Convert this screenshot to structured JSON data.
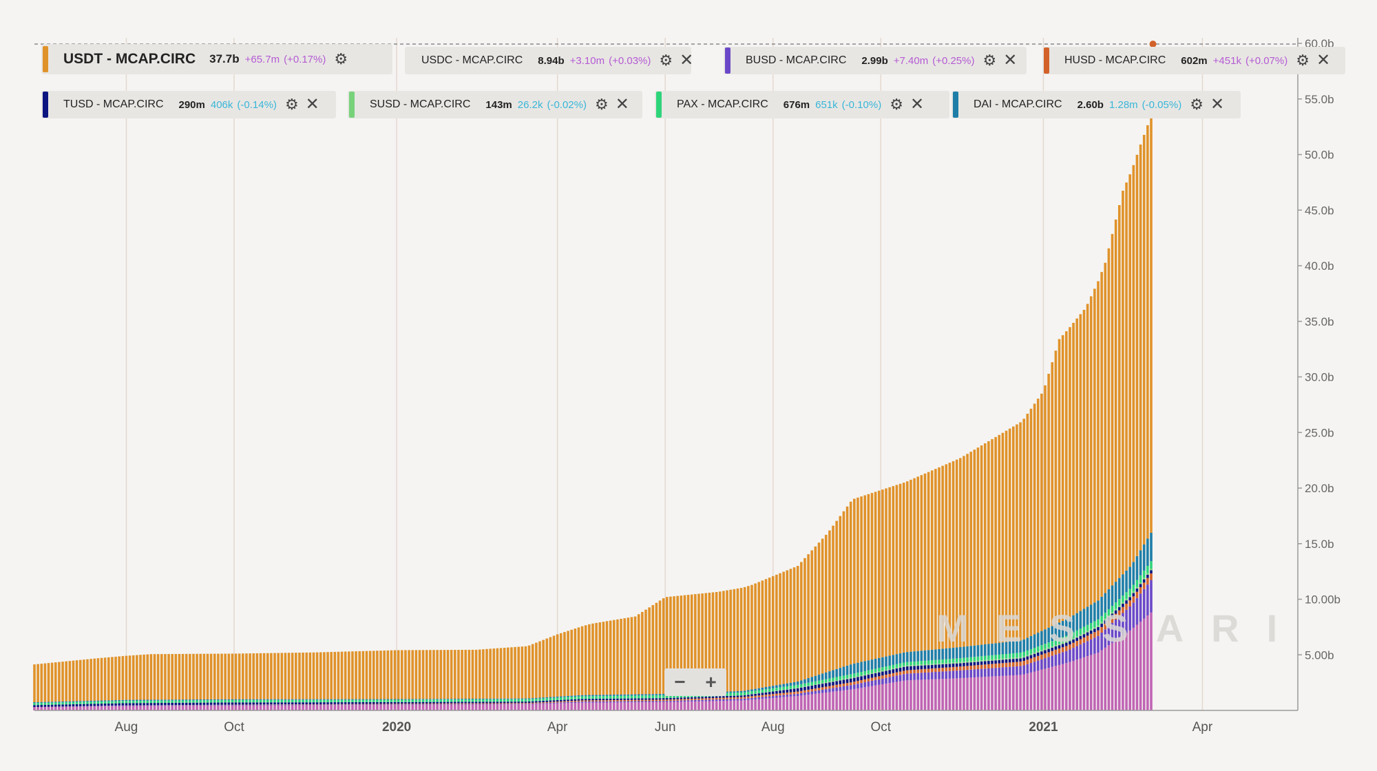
{
  "watermark": "MESSARI",
  "zoom": {
    "minus": "−",
    "plus": "+"
  },
  "legend": [
    {
      "name": "USDT - MCAP.CIRC",
      "value": "37.7b",
      "change": "+65.7m",
      "pct": "(+0.17%)",
      "color": "#e0922a",
      "trend": "pos",
      "closable": false,
      "large": true
    },
    {
      "name": "USDC - MCAP.CIRC",
      "value": "8.94b",
      "change": "+3.10m",
      "pct": "(+0.03%)",
      "color": "#c064b4",
      "trend": "pos",
      "closable": true,
      "large": false
    },
    {
      "name": "BUSD - MCAP.CIRC",
      "value": "2.99b",
      "change": "+7.40m",
      "pct": "(+0.25%)",
      "color": "#6b48c8",
      "trend": "pos",
      "closable": true,
      "large": false
    },
    {
      "name": "HUSD - MCAP.CIRC",
      "value": "602m",
      "change": "+451k",
      "pct": "(+0.07%)",
      "color": "#d2622a",
      "trend": "pos",
      "closable": true,
      "large": false
    },
    {
      "name": "TUSD - MCAP.CIRC",
      "value": "290m",
      "change": "406k",
      "pct": "(-0.14%)",
      "color": "#0c1580",
      "trend": "neg",
      "closable": true,
      "large": false
    },
    {
      "name": "SUSD - MCAP.CIRC",
      "value": "143m",
      "change": "26.2k",
      "pct": "(-0.02%)",
      "color": "#78d27a",
      "trend": "neg",
      "closable": true,
      "large": false
    },
    {
      "name": "PAX - MCAP.CIRC",
      "value": "676m",
      "change": "651k",
      "pct": "(-0.10%)",
      "color": "#2ed47a",
      "trend": "neg",
      "closable": true,
      "large": false
    },
    {
      "name": "DAI - MCAP.CIRC",
      "value": "2.60b",
      "change": "1.28m",
      "pct": "(-0.05%)",
      "color": "#1f7ea8",
      "trend": "neg",
      "closable": true,
      "large": false
    }
  ],
  "chart_data": {
    "type": "area",
    "stacked": true,
    "y_unit": "USD (billions)",
    "ylim": [
      0,
      60
    ],
    "y_ticks": [
      "5.00b",
      "10.00b",
      "15.0b",
      "20.0b",
      "25.0b",
      "30.0b",
      "35.0b",
      "40.0b",
      "45.0b",
      "50.0b",
      "55.0b",
      "60.0b"
    ],
    "x_ticks": [
      "Aug",
      "Oct",
      "2020",
      "Apr",
      "Jun",
      "Aug",
      "Oct",
      "2021",
      "Apr"
    ],
    "x_tick_bold": [
      false,
      false,
      true,
      false,
      false,
      false,
      false,
      true,
      false
    ],
    "x_tick_dates": [
      "2019-08",
      "2019-10",
      "2020-01",
      "2020-04",
      "2020-06",
      "2020-08",
      "2020-10",
      "2021-01",
      "2021-04"
    ],
    "x_range": [
      "2019-06-10",
      "2021-05-25"
    ],
    "grid": "vertical",
    "axis_position": "right",
    "series": [
      {
        "name": "USDC - MCAP.CIRC",
        "color": "#c064b4",
        "x": [
          "2019-06-10",
          "2019-08-01",
          "2019-10-01",
          "2020-01-01",
          "2020-03-15",
          "2020-04-15",
          "2020-06-01",
          "2020-07-15",
          "2020-08-15",
          "2020-09-15",
          "2020-10-15",
          "2020-11-15",
          "2020-12-20",
          "2021-01-15",
          "2021-02-01",
          "2021-02-20",
          "2021-03-04"
        ],
        "values": [
          0.3,
          0.4,
          0.45,
          0.5,
          0.55,
          0.7,
          0.75,
          0.9,
          1.3,
          1.9,
          2.7,
          2.9,
          3.2,
          4.3,
          5.2,
          7.3,
          8.94
        ]
      },
      {
        "name": "BUSD - MCAP.CIRC",
        "color": "#6b48c8",
        "x": [
          "2019-06-10",
          "2019-08-01",
          "2019-10-01",
          "2020-01-01",
          "2020-03-15",
          "2020-04-15",
          "2020-06-01",
          "2020-07-15",
          "2020-08-15",
          "2020-09-15",
          "2020-10-15",
          "2020-11-15",
          "2020-12-20",
          "2021-01-15",
          "2021-02-01",
          "2021-02-20",
          "2021-03-04"
        ],
        "values": [
          0.0,
          0.05,
          0.05,
          0.05,
          0.05,
          0.1,
          0.1,
          0.15,
          0.2,
          0.4,
          0.6,
          0.7,
          0.8,
          1.1,
          1.5,
          2.2,
          2.99
        ]
      },
      {
        "name": "HUSD - MCAP.CIRC",
        "color": "#d2622a",
        "x": [
          "2019-06-10",
          "2019-08-01",
          "2019-10-01",
          "2020-01-01",
          "2020-03-15",
          "2020-04-15",
          "2020-06-01",
          "2020-07-15",
          "2020-08-15",
          "2020-09-15",
          "2020-10-15",
          "2020-11-15",
          "2020-12-20",
          "2021-01-15",
          "2021-02-01",
          "2021-02-20",
          "2021-03-04"
        ],
        "values": [
          0.0,
          0.01,
          0.02,
          0.05,
          0.07,
          0.1,
          0.12,
          0.15,
          0.2,
          0.25,
          0.3,
          0.35,
          0.4,
          0.45,
          0.5,
          0.55,
          0.6
        ]
      },
      {
        "name": "TUSD - MCAP.CIRC",
        "color": "#0c1580",
        "x": [
          "2019-06-10",
          "2019-08-01",
          "2019-10-01",
          "2020-01-01",
          "2020-03-15",
          "2020-04-15",
          "2020-06-01",
          "2020-07-15",
          "2020-08-15",
          "2020-09-15",
          "2020-10-15",
          "2020-11-15",
          "2020-12-20",
          "2021-01-15",
          "2021-02-01",
          "2021-02-20",
          "2021-03-04"
        ],
        "values": [
          0.18,
          0.2,
          0.2,
          0.15,
          0.13,
          0.14,
          0.14,
          0.15,
          0.3,
          0.35,
          0.35,
          0.3,
          0.3,
          0.3,
          0.3,
          0.3,
          0.29
        ]
      },
      {
        "name": "SUSD - MCAP.CIRC",
        "color": "#78d27a",
        "x": [
          "2019-06-10",
          "2019-08-01",
          "2019-10-01",
          "2020-01-01",
          "2020-03-15",
          "2020-04-15",
          "2020-06-01",
          "2020-07-15",
          "2020-08-15",
          "2020-09-15",
          "2020-10-15",
          "2020-11-15",
          "2020-12-20",
          "2021-01-15",
          "2021-02-01",
          "2021-02-20",
          "2021-03-04"
        ],
        "values": [
          0.0,
          0.0,
          0.01,
          0.01,
          0.01,
          0.01,
          0.02,
          0.02,
          0.05,
          0.09,
          0.09,
          0.1,
          0.11,
          0.13,
          0.14,
          0.14,
          0.14
        ]
      },
      {
        "name": "PAX - MCAP.CIRC",
        "color": "#2ed47a",
        "x": [
          "2019-06-10",
          "2019-08-01",
          "2019-10-01",
          "2020-01-01",
          "2020-03-15",
          "2020-04-15",
          "2020-06-01",
          "2020-07-15",
          "2020-08-15",
          "2020-09-15",
          "2020-10-15",
          "2020-11-15",
          "2020-12-20",
          "2021-01-15",
          "2021-02-01",
          "2021-02-20",
          "2021-03-04"
        ],
        "values": [
          0.18,
          0.2,
          0.2,
          0.2,
          0.2,
          0.22,
          0.24,
          0.25,
          0.25,
          0.3,
          0.3,
          0.35,
          0.4,
          0.5,
          0.55,
          0.6,
          0.68
        ]
      },
      {
        "name": "DAI - MCAP.CIRC",
        "color": "#1f7ea8",
        "x": [
          "2019-06-10",
          "2019-08-01",
          "2019-10-01",
          "2020-01-01",
          "2020-03-15",
          "2020-04-15",
          "2020-06-01",
          "2020-07-15",
          "2020-08-15",
          "2020-09-15",
          "2020-10-15",
          "2020-11-15",
          "2020-12-20",
          "2021-01-15",
          "2021-02-01",
          "2021-02-20",
          "2021-03-04"
        ],
        "values": [
          0.08,
          0.09,
          0.08,
          0.06,
          0.07,
          0.11,
          0.12,
          0.13,
          0.3,
          0.9,
          0.9,
          1.0,
          1.1,
          1.5,
          1.7,
          2.0,
          2.6
        ]
      },
      {
        "name": "USDT - MCAP.CIRC",
        "color": "#e0922a",
        "x": [
          "2019-06-10",
          "2019-07-15",
          "2019-08-15",
          "2019-10-01",
          "2019-11-15",
          "2020-01-01",
          "2020-02-15",
          "2020-03-15",
          "2020-04-01",
          "2020-04-20",
          "2020-05-15",
          "2020-06-01",
          "2020-07-01",
          "2020-07-20",
          "2020-08-15",
          "2020-09-01",
          "2020-09-15",
          "2020-10-15",
          "2020-11-15",
          "2020-12-20",
          "2021-01-01",
          "2021-01-10",
          "2021-01-25",
          "2021-02-05",
          "2021-02-15",
          "2021-02-25",
          "2021-03-04"
        ],
        "values": [
          3.4,
          3.8,
          4.1,
          4.1,
          4.2,
          4.4,
          4.4,
          4.7,
          5.6,
          6.4,
          7.0,
          8.7,
          9.0,
          9.4,
          10.4,
          12.5,
          14.8,
          15.3,
          17.0,
          19.7,
          21.5,
          25.5,
          27.0,
          29.7,
          34.5,
          36.5,
          37.7
        ]
      }
    ]
  }
}
